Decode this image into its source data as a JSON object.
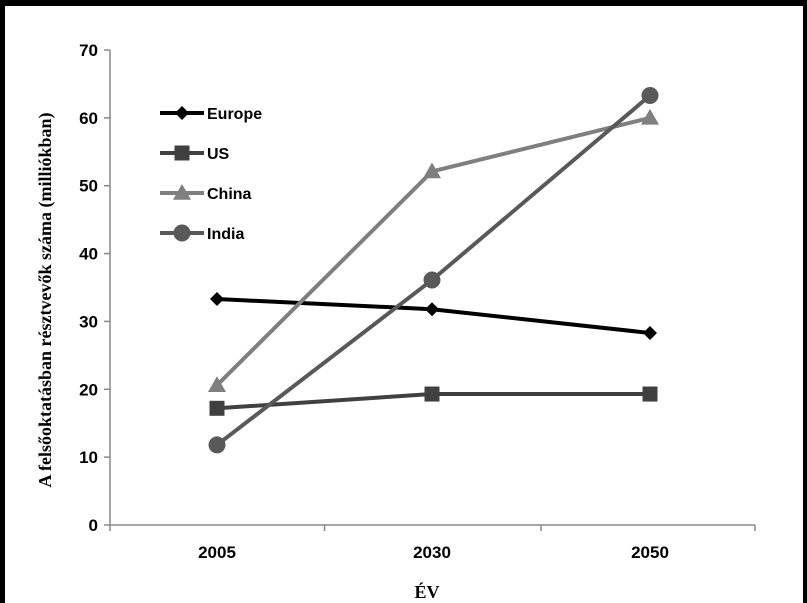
{
  "chart_data": {
    "type": "line",
    "categories": [
      "2005",
      "2030",
      "2050"
    ],
    "series": [
      {
        "name": "Europe",
        "values": [
          33.3,
          31.8,
          28.3
        ],
        "color": "#000000",
        "marker": "diamond"
      },
      {
        "name": "US",
        "values": [
          17.2,
          19.3,
          19.3
        ],
        "color": "#404040",
        "marker": "square"
      },
      {
        "name": "China",
        "values": [
          20.6,
          52.1,
          60.0
        ],
        "color": "#7f7f7f",
        "marker": "triangle"
      },
      {
        "name": "India",
        "values": [
          11.8,
          36.1,
          63.3
        ],
        "color": "#595959",
        "marker": "circle"
      }
    ],
    "xlabel": "ÉV",
    "ylabel": "A felsőoktatásban résztvevők száma (milliókban)",
    "ylim": [
      0,
      70
    ],
    "yticks": [
      "0",
      "10",
      "20",
      "30",
      "40",
      "50",
      "60",
      "70"
    ],
    "grid": false,
    "legend_position": "top-left"
  }
}
